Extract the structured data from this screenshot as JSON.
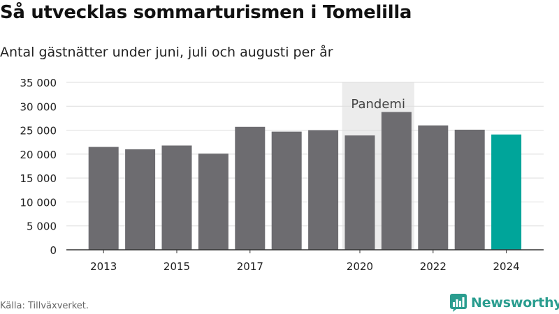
{
  "title": "Så utvecklas sommarturismen i Tomelilla",
  "subtitle": "Antal gästnätter under juni, juli och augusti per år",
  "source": "Källa: Tillväxverket.",
  "brand": {
    "name": "Newsworthy",
    "icon": "bar-chart-logo-icon"
  },
  "colors": {
    "bar": "#6d6c70",
    "highlight": "#00a59a",
    "band": "#ececec",
    "grid": "#dddddd",
    "brand": "#2a9d8f"
  },
  "chart_data": {
    "type": "bar",
    "categories": [
      "2013",
      "2014",
      "2015",
      "2016",
      "2017",
      "2018",
      "2019",
      "2020",
      "2021",
      "2022",
      "2023",
      "2024"
    ],
    "values": [
      21500,
      21000,
      21800,
      20100,
      25700,
      24700,
      25000,
      23900,
      28800,
      26000,
      25100,
      24100
    ],
    "highlight_category": "2024",
    "x_tick_labels": [
      "2013",
      "2015",
      "2017",
      "2020",
      "2022",
      "2024"
    ],
    "y_ticks": [
      0,
      5000,
      10000,
      15000,
      20000,
      25000,
      30000,
      35000
    ],
    "y_tick_labels": [
      "0",
      "5 000",
      "10 000",
      "15 000",
      "20 000",
      "25 000",
      "30 000",
      "35 000"
    ],
    "ylim": [
      0,
      35000
    ],
    "grid": "horizontal",
    "annotation": {
      "label": "Pandemi",
      "from": "2020",
      "to": "2021"
    },
    "xlabel": "",
    "ylabel": ""
  }
}
